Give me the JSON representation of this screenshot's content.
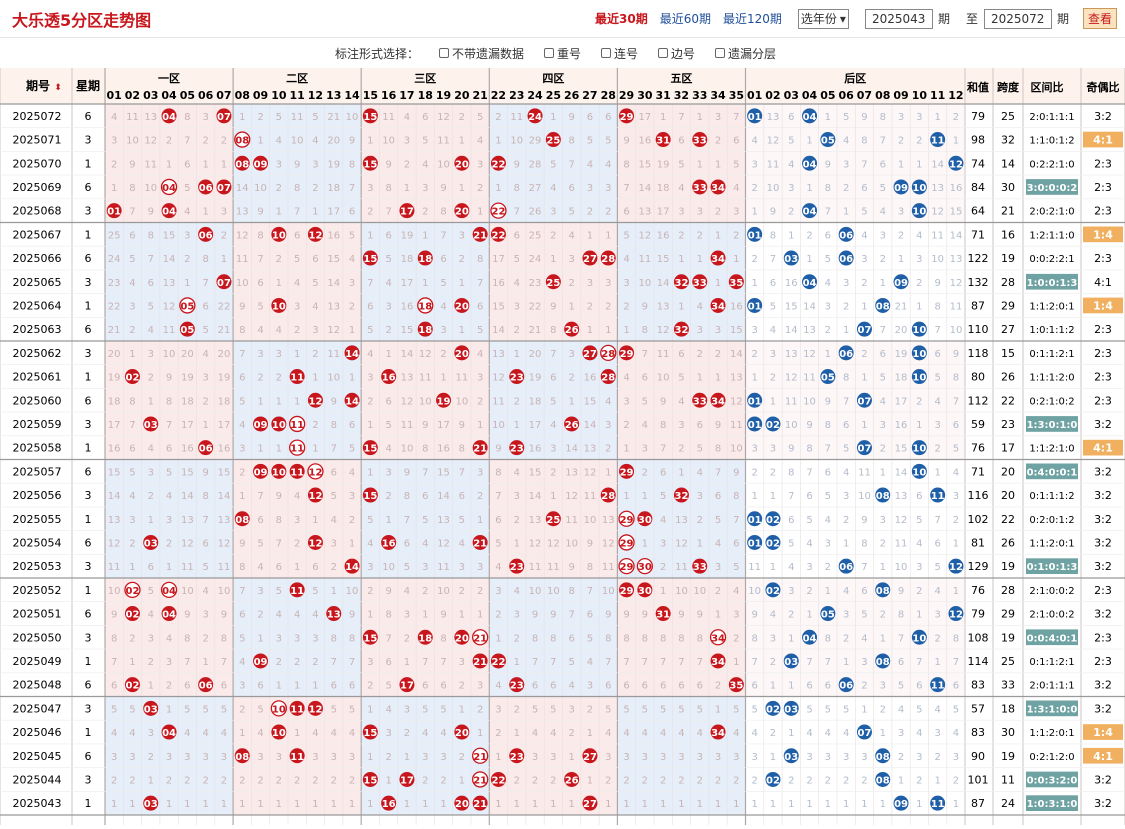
{
  "header": {
    "title": "大乐透5分区走势图",
    "ranges": [
      "最近30期",
      "最近60期",
      "最近120期"
    ],
    "year_select": "选年份",
    "from": "2025043",
    "period": "期",
    "to_label": "至",
    "to": "2025072",
    "query": "查看"
  },
  "options": {
    "label": "标注形式选择：",
    "items": [
      "不带遗漏数据",
      "重号",
      "连号",
      "边号",
      "遗漏分层"
    ]
  },
  "table": {
    "h_issue": "期号",
    "sort_icon": "sort-icon",
    "h_week": "星期",
    "zones": [
      "一区",
      "二区",
      "三区",
      "四区",
      "五区",
      "后区"
    ],
    "h_sum": "和值",
    "h_span": "跨度",
    "h_ratio": "区间比",
    "h_oe": "奇偶比",
    "rows": [
      {
        "i": "2025072",
        "w": "6",
        "f": [
          4,
          7,
          15,
          24,
          29
        ],
        "b": [
          1,
          4
        ],
        "sum": "79",
        "span": "25",
        "ratio": "2:0:1:1:1",
        "oe": "3:2",
        "ot": "n"
      },
      {
        "i": "2025071",
        "w": "3",
        "f": [
          8,
          25,
          31,
          33
        ],
        "b": [
          5,
          11
        ],
        "sum": "98",
        "span": "32",
        "ratio": "1:1:0:1:2",
        "oe": "4:1",
        "ot": "o"
      },
      {
        "i": "2025070",
        "w": "1",
        "f": [
          8,
          9,
          15,
          20,
          22
        ],
        "b": [
          4,
          12
        ],
        "sum": "74",
        "span": "14",
        "ratio": "0:2:2:1:0",
        "oe": "2:3",
        "ot": "n"
      },
      {
        "i": "2025069",
        "w": "6",
        "f": [
          4,
          6,
          7,
          33,
          34
        ],
        "b": [
          9,
          10
        ],
        "sum": "84",
        "span": "30",
        "ratio": "3:0:0:0:2",
        "oe": "2:3",
        "ot": "t"
      },
      {
        "i": "2025068",
        "w": "3",
        "f": [
          1,
          4,
          17,
          20,
          22
        ],
        "b": [
          4,
          10
        ],
        "sum": "64",
        "span": "21",
        "ratio": "2:0:2:1:0",
        "oe": "2:3",
        "ot": "n"
      },
      {
        "i": "2025067",
        "w": "1",
        "f": [
          6,
          10,
          12,
          21,
          22
        ],
        "b": [
          1,
          6
        ],
        "sum": "71",
        "span": "16",
        "ratio": "1:2:1:1:0",
        "oe": "1:4",
        "ot": "o"
      },
      {
        "i": "2025066",
        "w": "6",
        "f": [
          15,
          18,
          27,
          28,
          34
        ],
        "b": [
          3,
          6
        ],
        "sum": "122",
        "span": "19",
        "ratio": "0:0:2:2:1",
        "oe": "2:3",
        "ot": "n"
      },
      {
        "i": "2025065",
        "w": "3",
        "f": [
          7,
          25,
          32,
          33,
          35
        ],
        "b": [
          4,
          9
        ],
        "sum": "132",
        "span": "28",
        "ratio": "1:0:0:1:3",
        "oe": "4:1",
        "ot": "t"
      },
      {
        "i": "2025064",
        "w": "1",
        "f": [
          5,
          10,
          18,
          20,
          34
        ],
        "b": [
          1,
          8
        ],
        "sum": "87",
        "span": "29",
        "ratio": "1:1:2:0:1",
        "oe": "1:4",
        "ot": "o"
      },
      {
        "i": "2025063",
        "w": "6",
        "f": [
          5,
          18,
          26,
          32
        ],
        "b": [
          7,
          10
        ],
        "sum": "110",
        "span": "27",
        "ratio": "1:0:1:1:2",
        "oe": "2:3",
        "ot": "n"
      },
      {
        "i": "2025062",
        "w": "3",
        "f": [
          14,
          20,
          27,
          28,
          29
        ],
        "b": [
          6,
          10
        ],
        "sum": "118",
        "span": "15",
        "ratio": "0:1:1:2:1",
        "oe": "2:3",
        "ot": "n"
      },
      {
        "i": "2025061",
        "w": "1",
        "f": [
          2,
          11,
          16,
          23,
          28
        ],
        "b": [
          5,
          10
        ],
        "sum": "80",
        "span": "26",
        "ratio": "1:1:1:2:0",
        "oe": "2:3",
        "ot": "n"
      },
      {
        "i": "2025060",
        "w": "6",
        "f": [
          12,
          14,
          19,
          33,
          34
        ],
        "b": [
          1,
          7
        ],
        "sum": "112",
        "span": "22",
        "ratio": "0:2:1:0:2",
        "oe": "2:3",
        "ot": "n"
      },
      {
        "i": "2025059",
        "w": "3",
        "f": [
          3,
          9,
          10,
          11,
          26
        ],
        "b": [
          1,
          2
        ],
        "sum": "59",
        "span": "23",
        "ratio": "1:3:0:1:0",
        "oe": "3:2",
        "ot": "t"
      },
      {
        "i": "2025058",
        "w": "1",
        "f": [
          6,
          11,
          15,
          21,
          23
        ],
        "b": [
          7,
          10
        ],
        "sum": "76",
        "span": "17",
        "ratio": "1:1:2:1:0",
        "oe": "4:1",
        "ot": "o"
      },
      {
        "i": "2025057",
        "w": "6",
        "f": [
          9,
          10,
          11,
          12,
          29
        ],
        "b": [
          10
        ],
        "sum": "71",
        "span": "20",
        "ratio": "0:4:0:0:1",
        "oe": "3:2",
        "ot": "t"
      },
      {
        "i": "2025056",
        "w": "3",
        "f": [
          12,
          15,
          28,
          32
        ],
        "b": [
          8,
          11
        ],
        "sum": "116",
        "span": "20",
        "ratio": "0:1:1:1:2",
        "oe": "3:2",
        "ot": "n"
      },
      {
        "i": "2025055",
        "w": "1",
        "f": [
          8,
          25,
          29,
          30
        ],
        "b": [
          1,
          2
        ],
        "sum": "102",
        "span": "22",
        "ratio": "0:2:0:1:2",
        "oe": "3:2",
        "ot": "n"
      },
      {
        "i": "2025054",
        "w": "6",
        "f": [
          3,
          12,
          16,
          21,
          29
        ],
        "b": [
          1,
          2
        ],
        "sum": "81",
        "span": "26",
        "ratio": "1:1:2:0:1",
        "oe": "3:2",
        "ot": "n"
      },
      {
        "i": "2025053",
        "w": "3",
        "f": [
          14,
          23,
          29,
          30,
          33
        ],
        "b": [
          6,
          12
        ],
        "sum": "129",
        "span": "19",
        "ratio": "0:1:0:1:3",
        "oe": "3:2",
        "ot": "t"
      },
      {
        "i": "2025052",
        "w": "1",
        "f": [
          2,
          4,
          11,
          29,
          30
        ],
        "b": [
          2,
          8
        ],
        "sum": "76",
        "span": "28",
        "ratio": "2:1:0:0:2",
        "oe": "2:3",
        "ot": "n"
      },
      {
        "i": "2025051",
        "w": "6",
        "f": [
          2,
          4,
          13,
          31
        ],
        "b": [
          5,
          12
        ],
        "sum": "79",
        "span": "29",
        "ratio": "2:1:0:0:2",
        "oe": "3:2",
        "ot": "n"
      },
      {
        "i": "2025050",
        "w": "3",
        "f": [
          15,
          18,
          20,
          21,
          34
        ],
        "b": [
          4,
          10
        ],
        "sum": "108",
        "span": "19",
        "ratio": "0:0:4:0:1",
        "oe": "2:3",
        "ot": "t"
      },
      {
        "i": "2025049",
        "w": "1",
        "f": [
          9,
          21,
          22,
          34
        ],
        "b": [
          3,
          8
        ],
        "sum": "114",
        "span": "25",
        "ratio": "0:1:1:2:1",
        "oe": "2:3",
        "ot": "n"
      },
      {
        "i": "2025048",
        "w": "6",
        "f": [
          2,
          6,
          17,
          23,
          35
        ],
        "b": [
          6,
          11
        ],
        "sum": "83",
        "span": "33",
        "ratio": "2:0:1:1:1",
        "oe": "3:2",
        "ot": "n"
      },
      {
        "i": "2025047",
        "w": "3",
        "f": [
          3,
          10,
          11,
          12
        ],
        "b": [
          2,
          3
        ],
        "sum": "57",
        "span": "18",
        "ratio": "1:3:1:0:0",
        "oe": "3:2",
        "ot": "t"
      },
      {
        "i": "2025046",
        "w": "1",
        "f": [
          4,
          10,
          15,
          20,
          34
        ],
        "b": [
          7
        ],
        "sum": "83",
        "span": "30",
        "ratio": "1:1:2:0:1",
        "oe": "1:4",
        "ot": "o"
      },
      {
        "i": "2025045",
        "w": "6",
        "f": [
          8,
          11,
          21,
          23,
          27
        ],
        "b": [
          3,
          8
        ],
        "sum": "90",
        "span": "19",
        "ratio": "0:2:1:2:0",
        "oe": "4:1",
        "ot": "o"
      },
      {
        "i": "2025044",
        "w": "3",
        "f": [
          15,
          17,
          21,
          22,
          26
        ],
        "b": [
          2,
          8
        ],
        "sum": "101",
        "span": "11",
        "ratio": "0:0:3:2:0",
        "oe": "3:2",
        "ot": "t"
      },
      {
        "i": "2025043",
        "w": "1",
        "f": [
          3,
          16,
          20,
          21,
          27
        ],
        "b": [
          9,
          11
        ],
        "sum": "87",
        "span": "24",
        "ratio": "1:0:3:1:0",
        "oe": "3:2",
        "ot": "t"
      }
    ]
  },
  "colors": {
    "front": "#c8161d",
    "back": "#1f5fa8",
    "zone_pink": "#fbeaea",
    "zone_blue": "#e6eef9",
    "teal": "#6fa2a2",
    "orange": "#f0b060"
  }
}
